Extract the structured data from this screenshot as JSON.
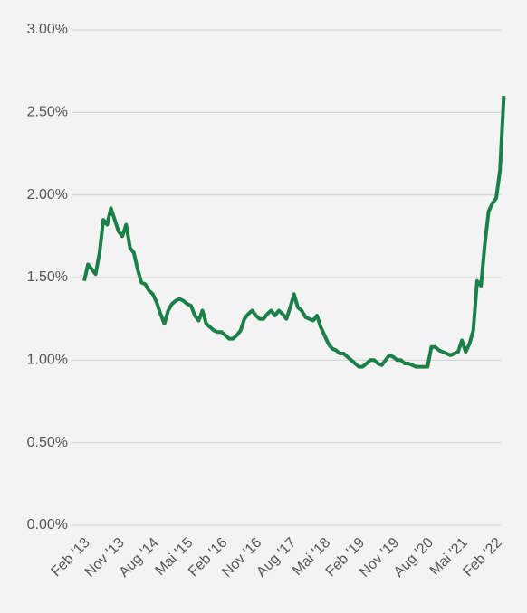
{
  "chart_data": {
    "type": "line",
    "categories": [
      "Feb '13",
      null,
      null,
      null,
      null,
      null,
      null,
      null,
      null,
      "Nov '13",
      null,
      null,
      null,
      null,
      null,
      null,
      null,
      null,
      "Aug '14",
      null,
      null,
      null,
      null,
      null,
      null,
      null,
      null,
      "Mai '15",
      null,
      null,
      null,
      null,
      null,
      null,
      null,
      null,
      "Feb '16",
      null,
      null,
      null,
      null,
      null,
      null,
      null,
      null,
      "Nov '16",
      null,
      null,
      null,
      null,
      null,
      null,
      null,
      null,
      "Aug '17",
      null,
      null,
      null,
      null,
      null,
      null,
      null,
      null,
      "Mai '18",
      null,
      null,
      null,
      null,
      null,
      null,
      null,
      null,
      "Feb '19",
      null,
      null,
      null,
      null,
      null,
      null,
      null,
      null,
      "Nov '19",
      null,
      null,
      null,
      null,
      null,
      null,
      null,
      null,
      "Aug '20",
      null,
      null,
      null,
      null,
      null,
      null,
      null,
      null,
      "Mai '21",
      null,
      null,
      null,
      null,
      null,
      null,
      null,
      null,
      "Feb '22",
      null,
      null
    ],
    "values": [
      1.48,
      1.58,
      1.55,
      1.52,
      1.65,
      1.85,
      1.82,
      1.92,
      1.85,
      1.78,
      1.75,
      1.82,
      1.68,
      1.65,
      1.55,
      1.47,
      1.46,
      1.42,
      1.4,
      1.35,
      1.28,
      1.22,
      1.3,
      1.34,
      1.36,
      1.37,
      1.36,
      1.34,
      1.33,
      1.27,
      1.24,
      1.3,
      1.22,
      1.2,
      1.18,
      1.17,
      1.17,
      1.15,
      1.13,
      1.13,
      1.15,
      1.18,
      1.25,
      1.28,
      1.3,
      1.27,
      1.25,
      1.25,
      1.28,
      1.3,
      1.27,
      1.3,
      1.28,
      1.25,
      1.32,
      1.4,
      1.32,
      1.3,
      1.26,
      1.25,
      1.24,
      1.27,
      1.2,
      1.15,
      1.1,
      1.07,
      1.06,
      1.04,
      1.04,
      1.02,
      1.0,
      0.98,
      0.96,
      0.96,
      0.98,
      1.0,
      1.0,
      0.98,
      0.97,
      1.0,
      1.03,
      1.02,
      1.0,
      1.0,
      0.98,
      0.98,
      0.97,
      0.96,
      0.96,
      0.96,
      0.96,
      1.08,
      1.08,
      1.06,
      1.05,
      1.04,
      1.03,
      1.04,
      1.05,
      1.12,
      1.05,
      1.1,
      1.18,
      1.48,
      1.45,
      1.7,
      1.9,
      1.95,
      1.98,
      2.15,
      2.6
    ],
    "color": "#1b8048",
    "ylim": [
      0,
      3
    ],
    "yticks": [
      {
        "value": 0,
        "label": "0.00%"
      },
      {
        "value": 0.5,
        "label": "0.50%"
      },
      {
        "value": 1,
        "label": "1.00%"
      },
      {
        "value": 1.5,
        "label": "1.50%"
      },
      {
        "value": 2,
        "label": "2.00%"
      },
      {
        "value": 2.5,
        "label": "2.50%"
      },
      {
        "value": 3,
        "label": "3.00%"
      }
    ],
    "grid": true
  }
}
